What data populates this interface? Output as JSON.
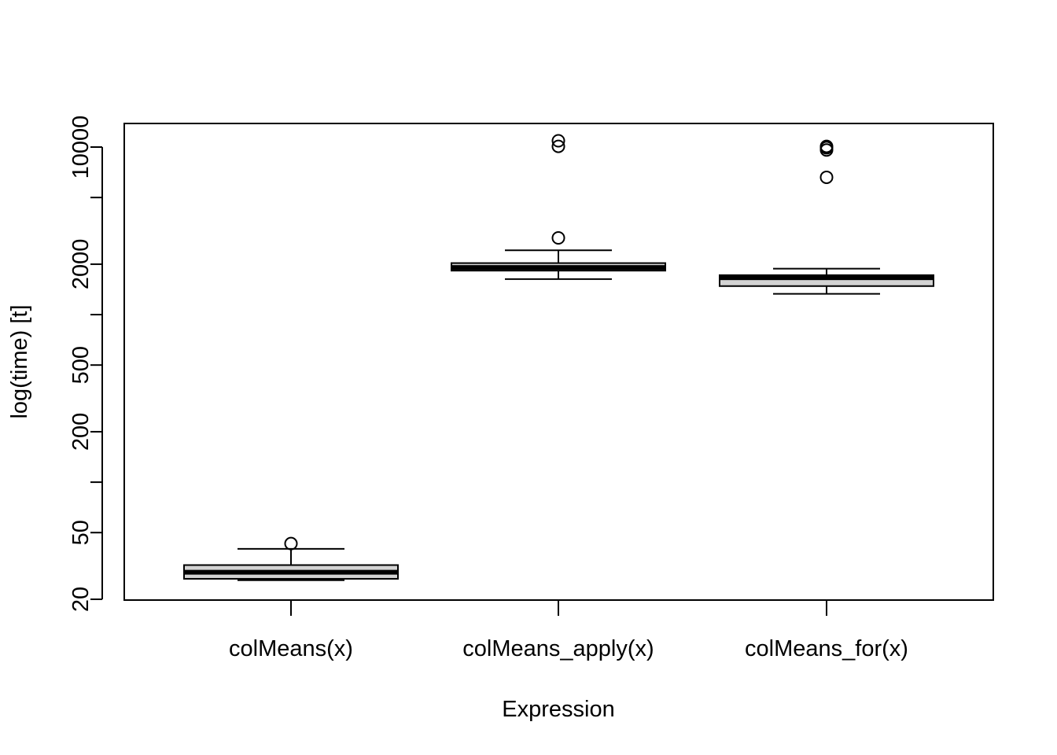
{
  "chart_data": {
    "type": "boxplot",
    "title": "",
    "xlabel": "Expression",
    "ylabel": "log(time) [t]",
    "yscale": "log",
    "ylim": [
      20,
      13000
    ],
    "yticks": [
      20,
      50,
      100,
      200,
      500,
      1000,
      2000,
      5000,
      10000
    ],
    "ytick_labels": [
      "20",
      "50",
      "",
      "200",
      "500",
      "",
      "2000",
      "",
      "10000"
    ],
    "box_fill": "#d3d3d3",
    "line_color": "#000000",
    "categories": [
      "colMeans(x)",
      "colMeans_apply(x)",
      "colMeans_for(x)"
    ],
    "series": [
      {
        "name": "colMeans(x)",
        "whisker_low": 26,
        "q1": 26.5,
        "median": 29,
        "q3": 32,
        "whisker_high": 40,
        "outliers": [
          43
        ]
      },
      {
        "name": "colMeans_apply(x)",
        "whisker_low": 1630,
        "q1": 1830,
        "median": 1910,
        "q3": 2030,
        "whisker_high": 2420,
        "outliers": [
          2870,
          10100,
          10900
        ]
      },
      {
        "name": "colMeans_for(x)",
        "whisker_low": 1330,
        "q1": 1480,
        "median": 1660,
        "q3": 1720,
        "whisker_high": 1880,
        "outliers": [
          6600,
          9600,
          9900,
          10100
        ]
      }
    ]
  }
}
